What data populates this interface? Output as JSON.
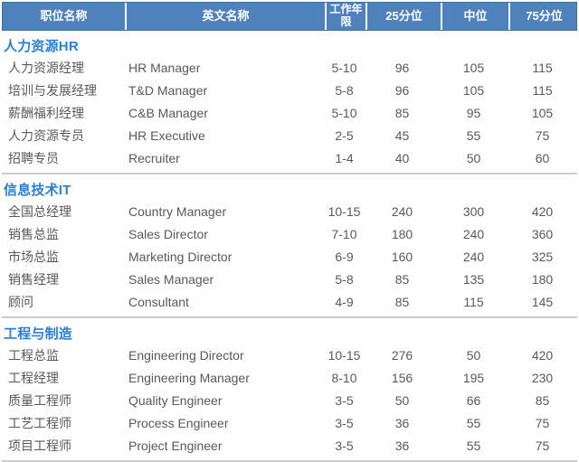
{
  "colors": {
    "header_bg": "#4f81bd",
    "header_border": "#41719c",
    "header_text": "#ffffff",
    "section_title_text": "#2b7fd0",
    "body_text": "#595959",
    "divider": "#cccccc"
  },
  "table": {
    "columns": {
      "title": "职位名称",
      "english": "英文名称",
      "years": "工作年限",
      "p25": "25分位",
      "median": "中位",
      "p75": "75分位"
    },
    "sections": [
      {
        "name": "人力资源HR",
        "rows": [
          {
            "title": "人力资源经理",
            "english": "HR Manager",
            "years": "5-10",
            "p25": "96",
            "median": "105",
            "p75": "115"
          },
          {
            "title": "培训与发展经理",
            "english": "T&D Manager",
            "years": "5-8",
            "p25": "96",
            "median": "105",
            "p75": "115"
          },
          {
            "title": "薪酬福利经理",
            "english": "C&B Manager",
            "years": "5-10",
            "p25": "85",
            "median": "95",
            "p75": "105"
          },
          {
            "title": "人力资源专员",
            "english": "HR Executive",
            "years": "2-5",
            "p25": "45",
            "median": "55",
            "p75": "75"
          },
          {
            "title": "招聘专员",
            "english": "Recruiter",
            "years": "1-4",
            "p25": "40",
            "median": "50",
            "p75": "60"
          }
        ]
      },
      {
        "name": "信息技术IT",
        "rows": [
          {
            "title": "全国总经理",
            "english": "Country Manager",
            "years": "10-15",
            "p25": "240",
            "median": "300",
            "p75": "420"
          },
          {
            "title": "销售总监",
            "english": "Sales Director",
            "years": "7-10",
            "p25": "180",
            "median": "240",
            "p75": "360"
          },
          {
            "title": "市场总监",
            "english": "Marketing Director",
            "years": "6-9",
            "p25": "160",
            "median": "240",
            "p75": "325"
          },
          {
            "title": "销售经理",
            "english": "Sales Manager",
            "years": "5-8",
            "p25": "85",
            "median": "135",
            "p75": "180"
          },
          {
            "title": "顾问",
            "english": "Consultant",
            "years": "4-9",
            "p25": "85",
            "median": "115",
            "p75": "145"
          }
        ]
      },
      {
        "name": "工程与制造",
        "rows": [
          {
            "title": "工程总监",
            "english": "Engineering Director",
            "years": "10-15",
            "p25": "276",
            "median": "50",
            "p75": "420"
          },
          {
            "title": "工程经理",
            "english": "Engineering Manager",
            "years": "8-10",
            "p25": "156",
            "median": "195",
            "p75": "230"
          },
          {
            "title": "质量工程师",
            "english": "Quality Engineer",
            "years": "3-5",
            "p25": "50",
            "median": "66",
            "p75": "85"
          },
          {
            "title": "工艺工程师",
            "english": "Process Engineer",
            "years": "3-5",
            "p25": "36",
            "median": "55",
            "p75": "75"
          },
          {
            "title": "项目工程师",
            "english": "Project Engineer",
            "years": "3-5",
            "p25": "36",
            "median": "55",
            "p75": "75"
          }
        ]
      }
    ]
  }
}
